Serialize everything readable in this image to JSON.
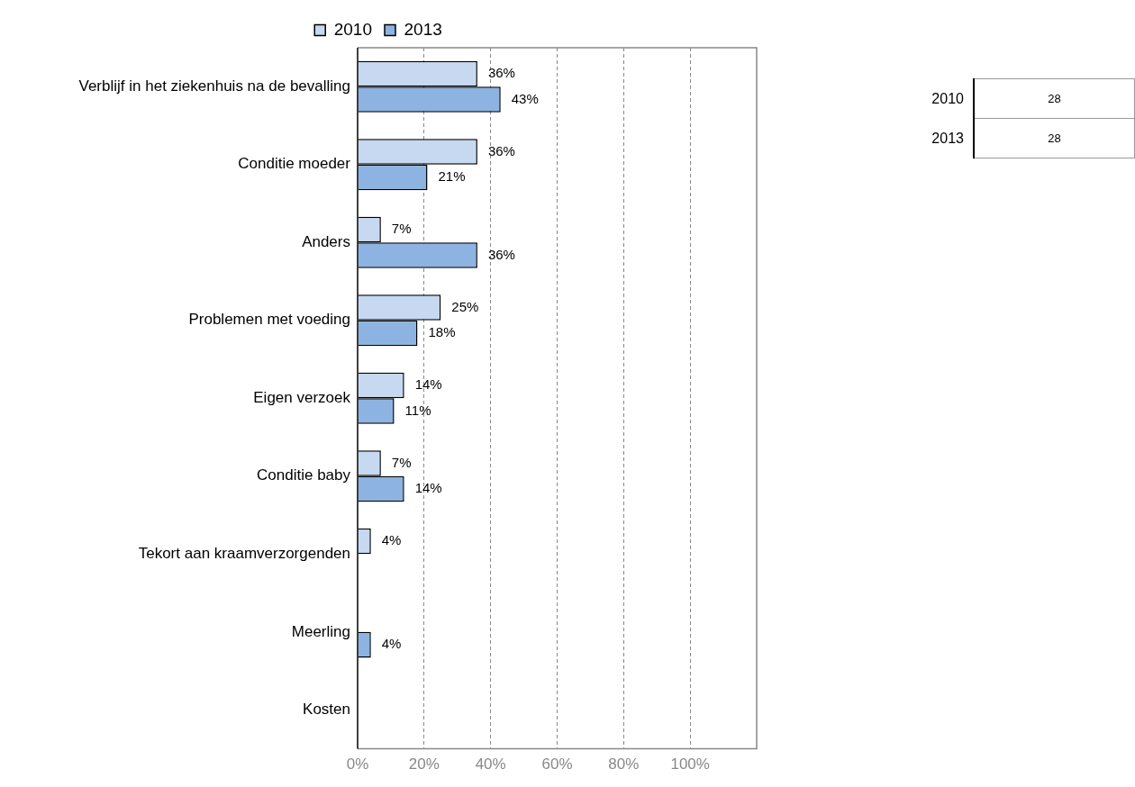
{
  "chart_data": [
    {
      "type": "bar",
      "orientation": "horizontal",
      "categories": [
        "Verblijf in het ziekenhuis na de bevalling",
        "Conditie moeder",
        "Anders",
        "Problemen met voeding",
        "Eigen verzoek",
        "Conditie baby",
        "Tekort aan kraamverzorgenden",
        "Meerling",
        "Kosten"
      ],
      "series": [
        {
          "name": "2010",
          "color": "#c6d9f1",
          "values": [
            36,
            36,
            7,
            25,
            14,
            7,
            4,
            null,
            null
          ],
          "value_labels": [
            "36%",
            "36%",
            "7%",
            "25%",
            "14%",
            "7%",
            "4%",
            null,
            null
          ]
        },
        {
          "name": "2013",
          "color": "#8db3e2",
          "values": [
            43,
            21,
            36,
            18,
            11,
            14,
            null,
            4,
            null
          ],
          "value_labels": [
            "43%",
            "21%",
            "36%",
            "18%",
            "11%",
            "14%",
            null,
            "4%",
            null
          ]
        }
      ],
      "xlim": [
        0,
        120
      ],
      "xticks": [
        {
          "value": 0,
          "label": "0%"
        },
        {
          "value": 20,
          "label": "20%"
        },
        {
          "value": 40,
          "label": "40%"
        },
        {
          "value": 60,
          "label": "60%"
        },
        {
          "value": 80,
          "label": "80%"
        },
        {
          "value": 100,
          "label": "100%"
        }
      ],
      "grid": "x",
      "legend": "top"
    },
    {
      "type": "other",
      "categories": [
        "2010",
        "2013"
      ],
      "annotations": [
        "28",
        "28"
      ]
    }
  ]
}
